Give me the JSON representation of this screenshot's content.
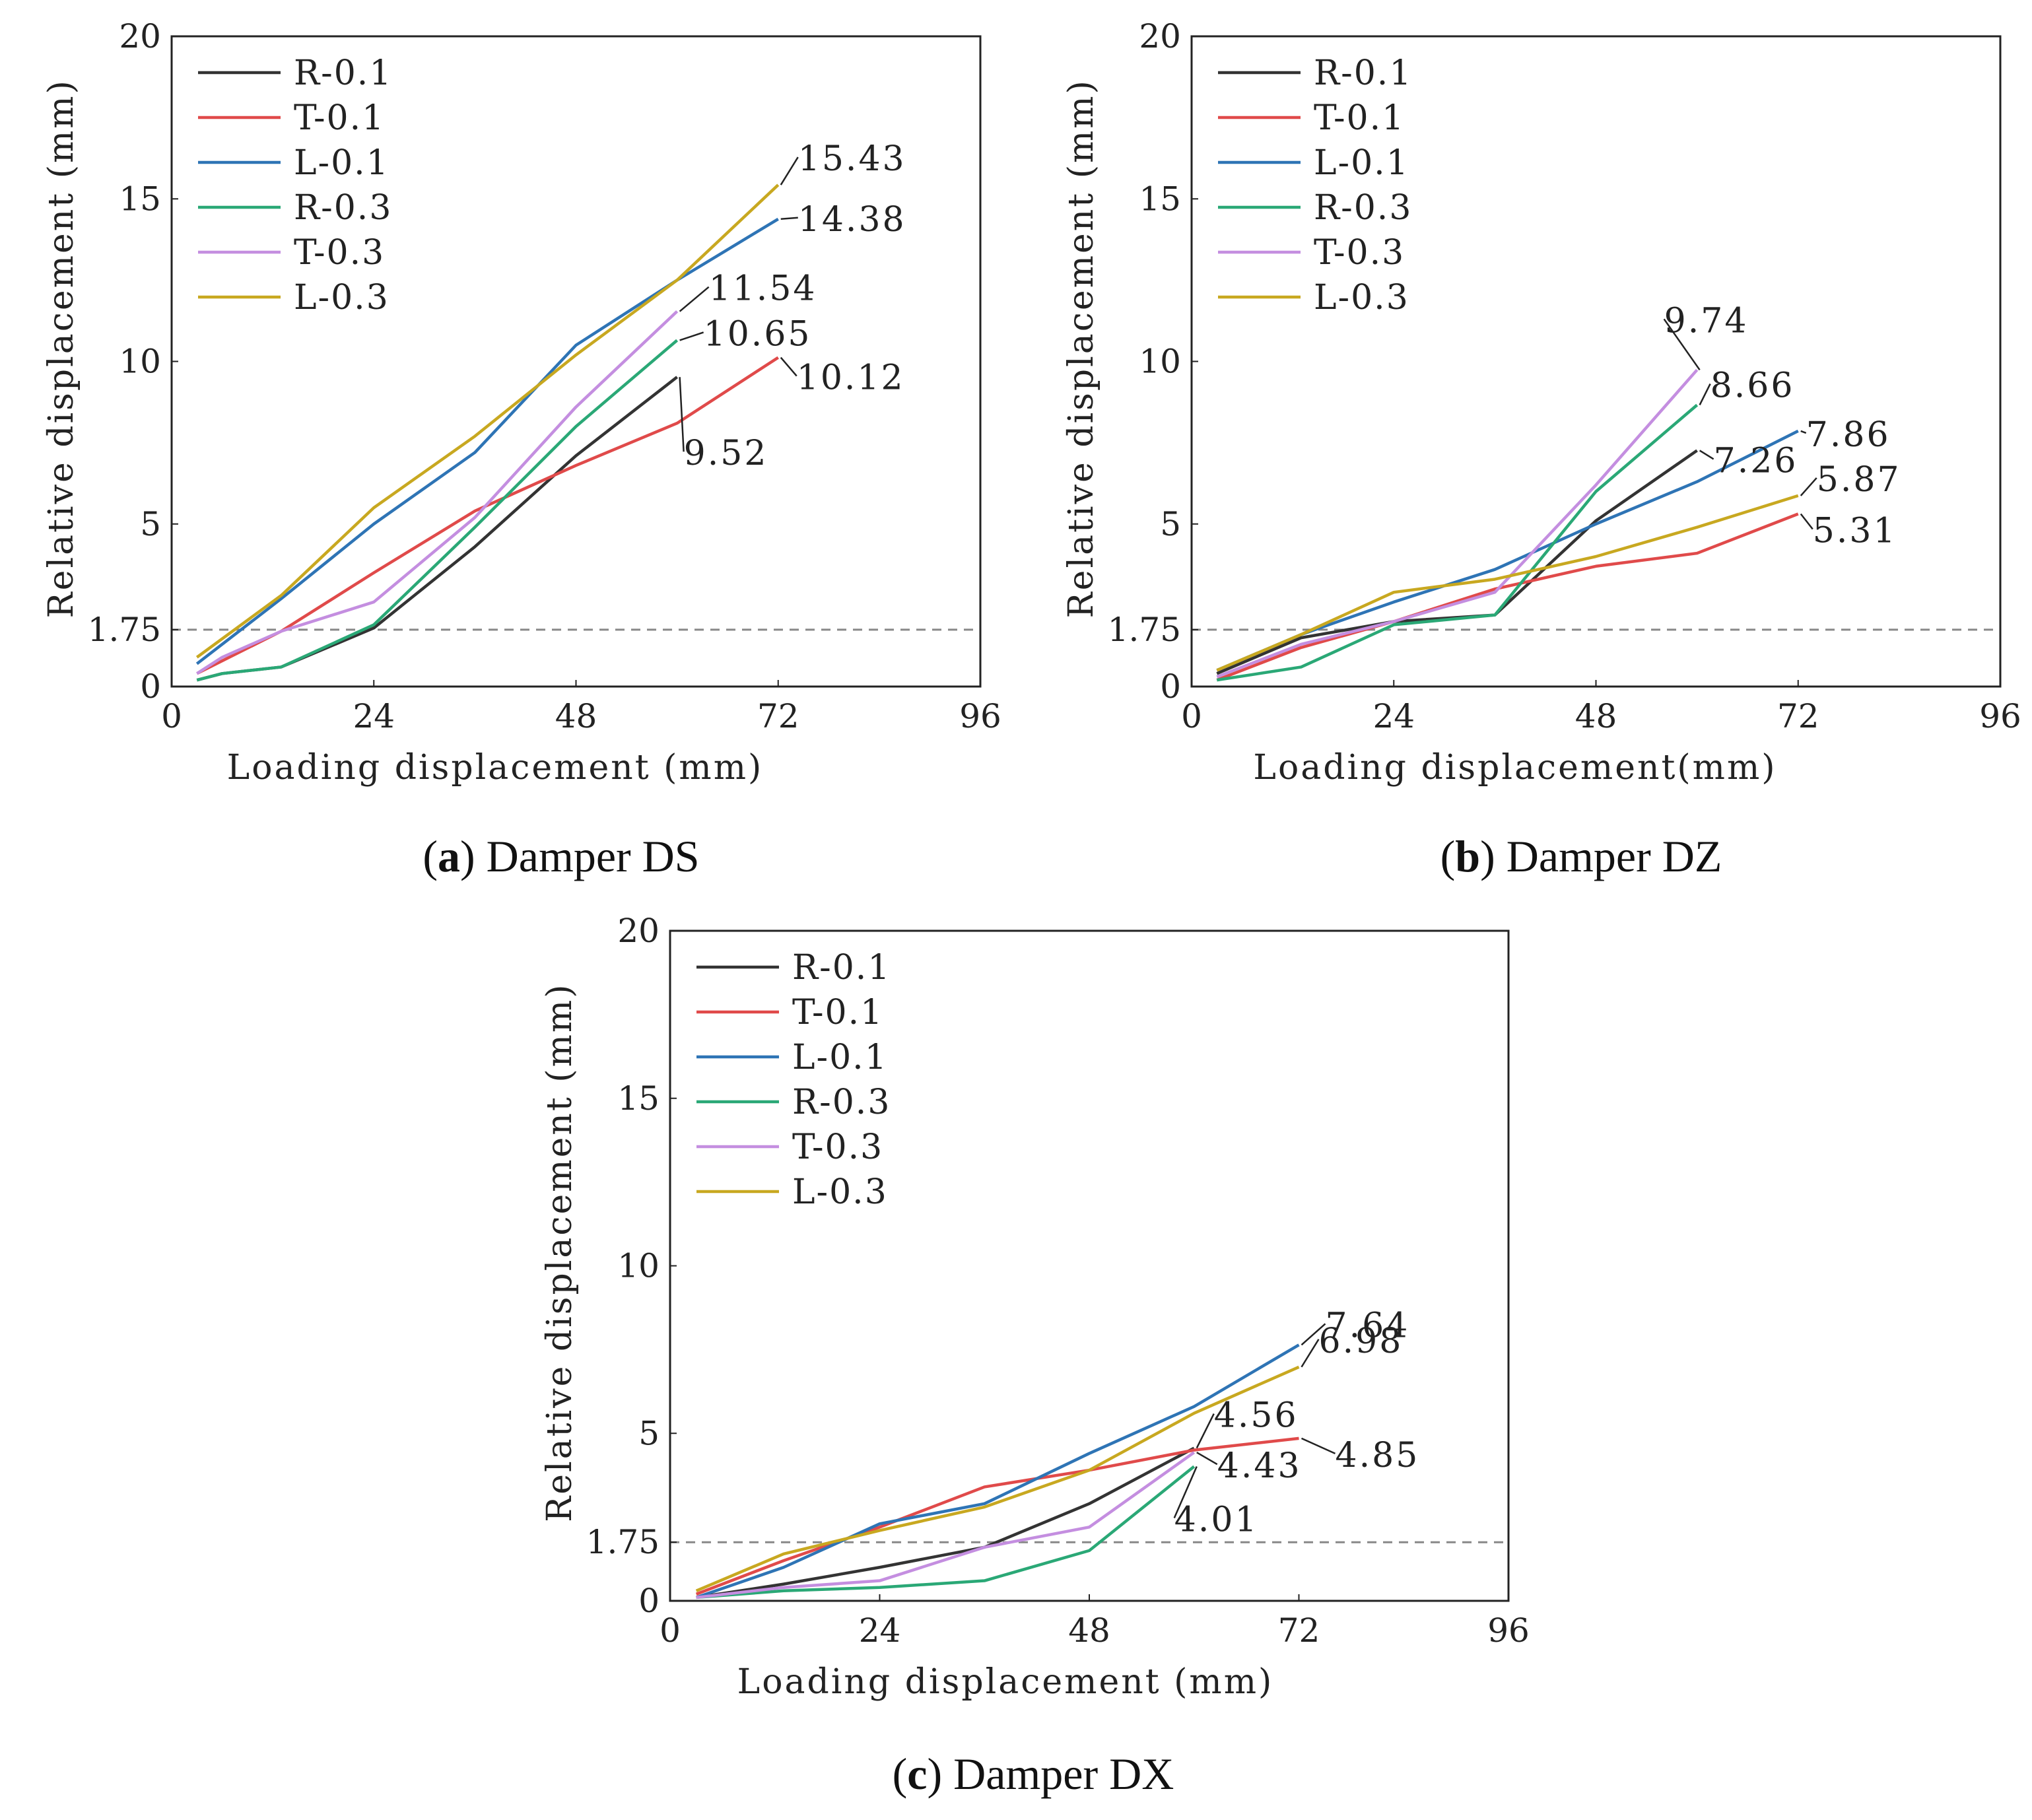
{
  "chart_data": [
    {
      "type": "line",
      "caption": {
        "letter": "a",
        "text": "Damper DS"
      },
      "xlabel": "Loading displacement (mm)",
      "ylabel": "Relative displacement (mm)",
      "xlim": [
        0,
        96
      ],
      "ylim": [
        0,
        20
      ],
      "xticks": [
        "0",
        "24",
        "48",
        "72",
        "96"
      ],
      "yticks": [
        "0",
        "1.75",
        "5",
        "10",
        "15",
        "20"
      ],
      "reference_line": {
        "y": 1.75,
        "style": "dashed"
      },
      "legend_position": "top-left",
      "series": [
        {
          "name": "R-0.1",
          "color": "#333333",
          "x": [
            3,
            6,
            13,
            24,
            36,
            48,
            60
          ],
          "y": [
            0.2,
            0.4,
            0.6,
            1.8,
            4.3,
            7.1,
            9.52
          ]
        },
        {
          "name": "T-0.1",
          "color": "#e04a4a",
          "x": [
            3,
            13,
            24,
            36,
            48,
            60,
            72
          ],
          "y": [
            0.4,
            1.7,
            3.5,
            5.4,
            6.8,
            8.1,
            10.12
          ]
        },
        {
          "name": "L-0.1",
          "color": "#2e74b5",
          "x": [
            3,
            13,
            24,
            36,
            48,
            60,
            72
          ],
          "y": [
            0.7,
            2.7,
            5.0,
            7.2,
            10.5,
            12.5,
            14.38
          ]
        },
        {
          "name": "R-0.3",
          "color": "#2aa876",
          "x": [
            3,
            6,
            13,
            24,
            36,
            48,
            60
          ],
          "y": [
            0.2,
            0.4,
            0.6,
            1.9,
            4.9,
            8.0,
            10.65
          ]
        },
        {
          "name": "T-0.3",
          "color": "#c48ee0",
          "x": [
            3,
            6,
            13,
            24,
            36,
            48,
            60
          ],
          "y": [
            0.4,
            0.9,
            1.7,
            2.6,
            5.2,
            8.6,
            11.54
          ]
        },
        {
          "name": "L-0.3",
          "color": "#c8a820",
          "x": [
            3,
            13,
            24,
            36,
            48,
            60,
            72
          ],
          "y": [
            0.9,
            2.8,
            5.5,
            7.7,
            10.2,
            12.5,
            15.43
          ]
        }
      ],
      "annotations": [
        {
          "text": "15.43",
          "x": 72,
          "y": 15.43
        },
        {
          "text": "14.38",
          "x": 72,
          "y": 14.38
        },
        {
          "text": "11.54",
          "x": 60,
          "y": 11.54
        },
        {
          "text": "10.65",
          "x": 60,
          "y": 10.65
        },
        {
          "text": "10.12",
          "x": 72,
          "y": 10.12
        },
        {
          "text": "9.52",
          "x": 60,
          "y": 9.52
        }
      ]
    },
    {
      "type": "line",
      "caption": {
        "letter": "b",
        "text": "Damper DZ"
      },
      "xlabel": "Loading displacement(mm)",
      "ylabel": "Relative displacement (mm)",
      "xlim": [
        0,
        96
      ],
      "ylim": [
        0,
        20
      ],
      "xticks": [
        "0",
        "24",
        "48",
        "72",
        "96"
      ],
      "yticks": [
        "0",
        "1.75",
        "5",
        "10",
        "15",
        "20"
      ],
      "reference_line": {
        "y": 1.75,
        "style": "dashed"
      },
      "legend_position": "top-left",
      "series": [
        {
          "name": "R-0.1",
          "color": "#333333",
          "x": [
            3,
            13,
            24,
            36,
            48,
            60
          ],
          "y": [
            0.4,
            1.5,
            2.0,
            2.2,
            5.1,
            7.26
          ]
        },
        {
          "name": "T-0.1",
          "color": "#e04a4a",
          "x": [
            3,
            13,
            24,
            36,
            48,
            60,
            72
          ],
          "y": [
            0.2,
            1.2,
            2.0,
            3.0,
            3.7,
            4.1,
            5.31
          ]
        },
        {
          "name": "L-0.1",
          "color": "#2e74b5",
          "x": [
            3,
            13,
            24,
            36,
            48,
            60,
            72
          ],
          "y": [
            0.5,
            1.6,
            2.6,
            3.6,
            5.0,
            6.3,
            7.86
          ]
        },
        {
          "name": "R-0.3",
          "color": "#2aa876",
          "x": [
            3,
            13,
            24,
            36,
            48,
            60
          ],
          "y": [
            0.2,
            0.6,
            1.9,
            2.2,
            6.0,
            8.66
          ]
        },
        {
          "name": "T-0.3",
          "color": "#c48ee0",
          "x": [
            3,
            13,
            24,
            36,
            48,
            60
          ],
          "y": [
            0.3,
            1.3,
            2.0,
            2.9,
            6.2,
            9.74
          ]
        },
        {
          "name": "L-0.3",
          "color": "#c8a820",
          "x": [
            3,
            13,
            24,
            36,
            48,
            60,
            72
          ],
          "y": [
            0.5,
            1.6,
            2.9,
            3.3,
            4.0,
            4.9,
            5.87
          ]
        }
      ],
      "annotations": [
        {
          "text": "9.74",
          "x": 60,
          "y": 9.74
        },
        {
          "text": "8.66",
          "x": 60,
          "y": 8.66
        },
        {
          "text": "7.26",
          "x": 60,
          "y": 7.26
        },
        {
          "text": "7.86",
          "x": 72,
          "y": 7.86
        },
        {
          "text": "5.87",
          "x": 72,
          "y": 5.87
        },
        {
          "text": "5.31",
          "x": 72,
          "y": 5.31
        }
      ]
    },
    {
      "type": "line",
      "caption": {
        "letter": "c",
        "text": "Damper DX"
      },
      "xlabel": "Loading displacement (mm)",
      "ylabel": "Relative displacement (mm)",
      "xlim": [
        0,
        96
      ],
      "ylim": [
        0,
        20
      ],
      "xticks": [
        "0",
        "24",
        "48",
        "72",
        "96"
      ],
      "yticks": [
        "0",
        "1.75",
        "5",
        "10",
        "15",
        "20"
      ],
      "reference_line": {
        "y": 1.75,
        "style": "dashed"
      },
      "legend_position": "top-left",
      "series": [
        {
          "name": "R-0.1",
          "color": "#333333",
          "x": [
            3,
            13,
            24,
            36,
            48,
            60
          ],
          "y": [
            0.1,
            0.5,
            1.0,
            1.6,
            2.9,
            4.56
          ]
        },
        {
          "name": "T-0.1",
          "color": "#e04a4a",
          "x": [
            3,
            13,
            24,
            36,
            48,
            60,
            72
          ],
          "y": [
            0.2,
            1.2,
            2.2,
            3.4,
            3.9,
            4.5,
            4.85
          ]
        },
        {
          "name": "L-0.1",
          "color": "#2e74b5",
          "x": [
            3,
            13,
            24,
            36,
            48,
            60,
            72
          ],
          "y": [
            0.1,
            1.0,
            2.3,
            2.9,
            4.4,
            5.8,
            7.64
          ]
        },
        {
          "name": "R-0.3",
          "color": "#2aa876",
          "x": [
            3,
            13,
            24,
            36,
            48,
            60
          ],
          "y": [
            0.1,
            0.3,
            0.4,
            0.6,
            1.5,
            4.01
          ]
        },
        {
          "name": "T-0.3",
          "color": "#c48ee0",
          "x": [
            3,
            13,
            24,
            36,
            48,
            60
          ],
          "y": [
            0.1,
            0.4,
            0.6,
            1.6,
            2.2,
            4.43
          ]
        },
        {
          "name": "L-0.3",
          "color": "#c8a820",
          "x": [
            3,
            13,
            24,
            36,
            48,
            60,
            72
          ],
          "y": [
            0.3,
            1.4,
            2.1,
            2.8,
            3.9,
            5.6,
            6.98
          ]
        }
      ],
      "annotations": [
        {
          "text": "7.64",
          "x": 72,
          "y": 7.64
        },
        {
          "text": "6.98",
          "x": 72,
          "y": 6.98
        },
        {
          "text": "4.56",
          "x": 60,
          "y": 4.56
        },
        {
          "text": "4.85",
          "x": 72,
          "y": 4.85
        },
        {
          "text": "4.43",
          "x": 60,
          "y": 4.43
        },
        {
          "text": "4.01",
          "x": 60,
          "y": 4.01
        }
      ]
    }
  ]
}
